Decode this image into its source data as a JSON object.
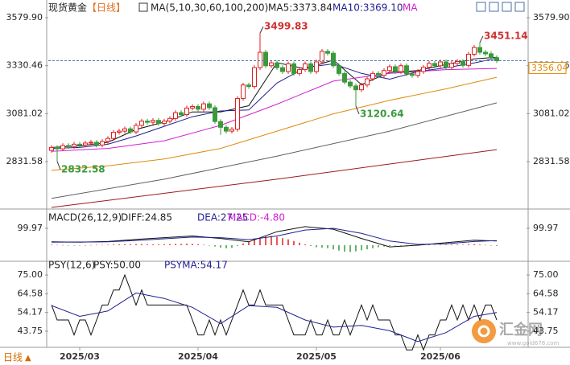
{
  "chart_data": {
    "type": "candlestick",
    "header": [
      {
        "text": "现货黄金",
        "color": "#222222"
      },
      {
        "text": "【日线】",
        "color": "#e07020"
      },
      {
        "text": "MA(5,10,30,60,100,200)",
        "color": "#222222"
      },
      {
        "text": "MA5:3373.84",
        "color": "#222222"
      },
      {
        "text": "MA10:3369.10",
        "color": "#1f1f8f"
      },
      {
        "text": "MA",
        "color": "#d020d0"
      }
    ],
    "up_color": "#e02020",
    "down_color": "#3a9a3a",
    "open": [
      2890,
      2905,
      2898,
      2915,
      2910,
      2922,
      2918,
      2928,
      2932,
      2918,
      2936,
      2952,
      2984,
      2990,
      3002,
      2986,
      3020,
      3042,
      3036,
      3046,
      3030,
      3042,
      3056,
      3086,
      3076,
      3110,
      3118,
      3104,
      3132,
      3112,
      3040,
      3010,
      2990,
      3000,
      3160,
      3230,
      3222,
      3320,
      3400,
      3330,
      3345,
      3320,
      3300,
      3340,
      3290,
      3310,
      3340,
      3300,
      3350,
      3405,
      3395,
      3330,
      3290,
      3245,
      3225,
      3205,
      3230,
      3262,
      3290,
      3280,
      3305,
      3325,
      3300,
      3330,
      3288,
      3280,
      3300,
      3322,
      3342,
      3330,
      3350,
      3322,
      3342,
      3352,
      3332,
      3390,
      3425,
      3400,
      3392,
      3372
    ],
    "high": [
      2917,
      2917,
      2927,
      2927,
      2934,
      2934,
      2940,
      2944,
      2944,
      2948,
      2964,
      2996,
      3002,
      3014,
      3014,
      3032,
      3054,
      3054,
      3058,
      3058,
      3054,
      3068,
      3098,
      3098,
      3122,
      3130,
      3130,
      3144,
      3144,
      3124,
      3052,
      3022,
      3012,
      3172,
      3242,
      3242,
      3332,
      3499.83,
      3412,
      3357,
      3357,
      3332,
      3352,
      3352,
      3322,
      3352,
      3352,
      3362,
      3417,
      3417,
      3407,
      3342,
      3302,
      3257,
      3237,
      3242,
      3274,
      3302,
      3302,
      3317,
      3337,
      3337,
      3342,
      3342,
      3300,
      3312,
      3334,
      3354,
      3354,
      3362,
      3362,
      3354,
      3364,
      3364,
      3402,
      3437,
      3451.14,
      3412,
      3404,
      3384
    ],
    "low": [
      2878,
      2832.58,
      2886,
      2898,
      2898,
      2906,
      2906,
      2916,
      2906,
      2906,
      2924,
      2940,
      2972,
      2978,
      2974,
      2974,
      3008,
      3024,
      3024,
      3018,
      3018,
      3030,
      3044,
      3064,
      3064,
      3098,
      3092,
      3092,
      3100,
      3028,
      2970,
      2978,
      2978,
      2988,
      3148,
      3210,
      3210,
      3308,
      3318,
      3318,
      3308,
      3288,
      3288,
      3278,
      3278,
      3298,
      3288,
      3288,
      3338,
      3383,
      3318,
      3278,
      3233,
      3213,
      3120.64,
      3193,
      3218,
      3250,
      3268,
      3268,
      3293,
      3288,
      3288,
      3276,
      3268,
      3268,
      3288,
      3310,
      3318,
      3318,
      3310,
      3310,
      3330,
      3320,
      3320,
      3378,
      3388,
      3380,
      3360,
      3344
    ],
    "close": [
      2905,
      2898,
      2915,
      2910,
      2922,
      2918,
      2928,
      2932,
      2918,
      2936,
      2952,
      2984,
      2990,
      3002,
      2986,
      3020,
      3042,
      3036,
      3046,
      3030,
      3042,
      3056,
      3086,
      3076,
      3110,
      3118,
      3104,
      3132,
      3112,
      3040,
      3010,
      2990,
      3000,
      3160,
      3230,
      3222,
      3320,
      3400,
      3330,
      3345,
      3320,
      3300,
      3340,
      3290,
      3310,
      3340,
      3300,
      3350,
      3405,
      3395,
      3330,
      3290,
      3245,
      3225,
      3205,
      3230,
      3262,
      3290,
      3280,
      3305,
      3325,
      3300,
      3330,
      3288,
      3280,
      3300,
      3322,
      3342,
      3330,
      3350,
      3322,
      3342,
      3352,
      3332,
      3390,
      3425,
      3400,
      3392,
      3372,
      3356.04
    ],
    "annotations": [
      {
        "index": 37,
        "field": "high",
        "color": "#d03030"
      },
      {
        "index": 76,
        "field": "high",
        "color": "#d03030"
      },
      {
        "index": 54,
        "field": "low",
        "color": "#3a9a3a"
      },
      {
        "index": 1,
        "field": "low",
        "color": "#3a9a3a"
      }
    ],
    "ma_lines": [
      {
        "color": "#111111",
        "x": [
          0,
          5,
          10,
          15,
          20,
          25,
          30,
          35,
          40,
          45,
          50,
          55,
          60,
          65,
          70,
          75,
          79
        ],
        "values": [
          2905,
          2913,
          2932,
          2999,
          3037,
          3090,
          3090,
          3122,
          3346,
          3314,
          3360,
          3232,
          3296,
          3305,
          3336,
          3366,
          3374
        ]
      },
      {
        "color": "#1f1f8f",
        "x": [
          0,
          5,
          10,
          15,
          20,
          25,
          30,
          35,
          40,
          45,
          50,
          55,
          60,
          65,
          70,
          75,
          79
        ],
        "values": [
          2900,
          2905,
          2922,
          2965,
          3015,
          3065,
          3095,
          3100,
          3240,
          3320,
          3340,
          3290,
          3260,
          3300,
          3320,
          3345,
          3369
        ]
      },
      {
        "color": "#d020d0",
        "x": [
          0,
          10,
          20,
          30,
          40,
          50,
          60,
          70,
          79
        ],
        "values": [
          2885,
          2900,
          2940,
          3020,
          3130,
          3250,
          3290,
          3310,
          3316
        ]
      },
      {
        "color": "#e08a10",
        "x": [
          0,
          10,
          20,
          30,
          40,
          50,
          60,
          70,
          79
        ],
        "values": [
          2786,
          2810,
          2845,
          2900,
          2990,
          3080,
          3150,
          3210,
          3270
        ]
      },
      {
        "color": "#606060",
        "x": [
          0,
          20,
          40,
          60,
          79
        ],
        "values": [
          2640,
          2740,
          2860,
          2990,
          3137
        ]
      },
      {
        "color": "#9a1a1a",
        "x": [
          0,
          40,
          79
        ],
        "values": [
          2593.5,
          2740,
          2894
        ]
      }
    ],
    "ylim": [
      2593.3,
      3621.7
    ],
    "yticks": [
      {
        "value": 3579.9,
        "label": "3579.90"
      },
      3330.46,
      3081.02,
      2831.58
    ],
    "last_color": "#4a7ab0",
    "xticks": [
      {
        "value": 5,
        "label": "2025/03"
      },
      {
        "value": 26,
        "label": "2025/04"
      },
      {
        "value": 47,
        "label": "2025/05"
      },
      {
        "value": 69,
        "label": "2025/06"
      }
    ],
    "macd": {
      "header": [
        {
          "text": "MACD(26,12,9)",
          "color": "#222222"
        },
        {
          "text": "DIFF:24.85",
          "color": "#222222"
        },
        {
          "text": "DEA:27.25",
          "color": "#1f1f8f"
        },
        {
          "text": "MACD:-4.80",
          "color": "#d020d0"
        }
      ],
      "ylim": [
        -81,
        205
      ],
      "yticks": [
        99.97
      ],
      "lines": [
        {
          "color": "#111111",
          "x": [
            0,
            5,
            10,
            15,
            20,
            25,
            30,
            35,
            40,
            45,
            50,
            55,
            60,
            65,
            70,
            75,
            79
          ],
          "values": [
            20,
            18,
            22,
            35,
            45,
            55,
            40,
            20,
            80,
            110,
            95,
            40,
            -10,
            0,
            15,
            30,
            24.85
          ]
        },
        {
          "color": "#1f1f8f",
          "x": [
            0,
            5,
            10,
            15,
            20,
            25,
            30,
            35,
            40,
            45,
            50,
            55,
            60,
            65,
            70,
            75,
            79
          ],
          "values": [
            18,
            19,
            20,
            28,
            38,
            48,
            45,
            33,
            55,
            90,
            100,
            70,
            25,
            5,
            8,
            22,
            27.25
          ]
        }
      ],
      "histogram": [
        3,
        2,
        1,
        -1,
        -2,
        -1,
        0,
        1,
        2,
        2,
        3,
        4,
        5,
        6,
        6,
        7,
        7,
        6,
        5,
        5,
        6,
        7,
        8,
        8,
        9,
        8,
        6,
        3,
        -2,
        -8,
        -14,
        -18,
        -16,
        -5,
        10,
        22,
        35,
        45,
        52,
        55,
        50,
        42,
        35,
        25,
        15,
        5,
        -5,
        -12,
        -15,
        -18,
        -25,
        -32,
        -38,
        -40,
        -36,
        -30,
        -24,
        -18,
        -12,
        -8,
        -5,
        -3,
        -2,
        0,
        1,
        2,
        3,
        3,
        2,
        2,
        3,
        4,
        4,
        3,
        5,
        6,
        4,
        2,
        -2,
        -4.8
      ]
    },
    "psy": {
      "header": [
        {
          "text": "PSY(12,6)",
          "color": "#222222"
        },
        {
          "text": "PSY:50.00",
          "color": "#222222"
        },
        {
          "text": "PSYMA:54.17",
          "color": "#1f1f8f"
        }
      ],
      "ylim": [
        34.8,
        80.4
      ],
      "yticks": [
        {
          "value": 75,
          "label": "75.00"
        },
        64.58,
        54.17,
        43.75
      ],
      "psy_color": "#111111",
      "values": [
        58.33,
        50,
        50,
        50,
        41.67,
        50,
        50,
        41.67,
        50,
        58.33,
        58.33,
        66.67,
        66.67,
        75,
        66.67,
        58.33,
        66.67,
        58.33,
        58.33,
        58.33,
        58.33,
        58.33,
        58.33,
        58.33,
        58.33,
        50,
        41.67,
        41.67,
        50,
        41.67,
        50,
        41.67,
        50,
        58.33,
        66.67,
        58.33,
        58.33,
        66.67,
        58.33,
        58.33,
        58.33,
        58.33,
        50,
        41.67,
        41.67,
        41.67,
        50,
        41.67,
        41.67,
        50,
        41.67,
        41.67,
        50,
        41.67,
        50,
        58.33,
        50,
        58.33,
        50,
        50,
        50,
        41.67,
        41.67,
        33.33,
        33.33,
        41.67,
        33.33,
        41.67,
        41.67,
        50,
        50,
        58.33,
        50,
        58.33,
        50,
        58.33,
        50,
        58.33,
        58.33,
        50
      ],
      "ma": {
        "color": "#1f1f8f",
        "x": [
          0,
          5,
          10,
          15,
          20,
          25,
          30,
          35,
          40,
          45,
          50,
          55,
          60,
          65,
          70,
          75,
          79
        ],
        "values": [
          58,
          52,
          55,
          65,
          62,
          57,
          48,
          58,
          57,
          50,
          46,
          47,
          44,
          38,
          43,
          52,
          54.17
        ]
      }
    },
    "footer": {
      "period": "日线",
      "arrow": "▲"
    },
    "watermark": {
      "name": "汇金网",
      "url": "www.gold678.com"
    }
  }
}
